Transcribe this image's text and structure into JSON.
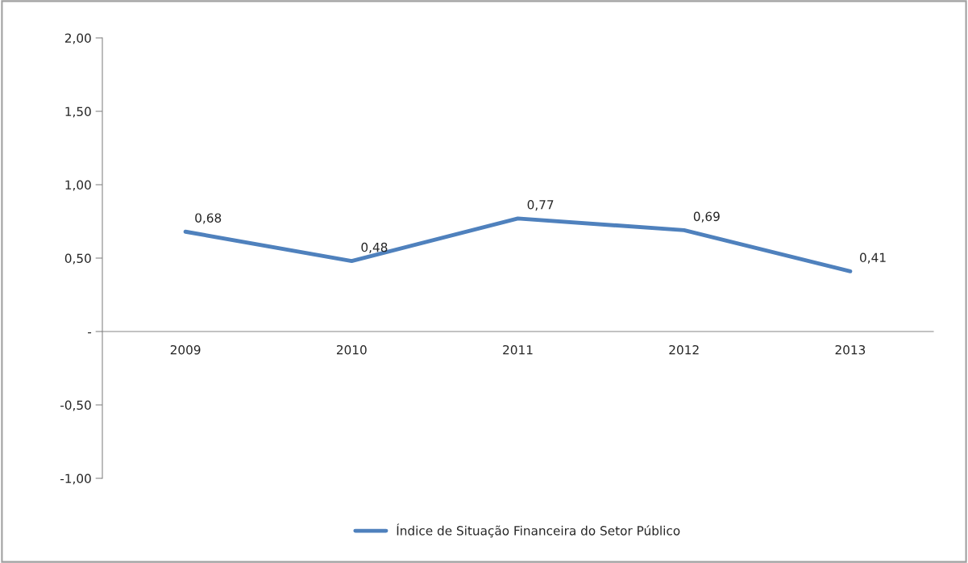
{
  "chart_data": {
    "type": "line",
    "categories": [
      "2009",
      "2010",
      "2011",
      "2012",
      "2013"
    ],
    "series": [
      {
        "name": "Índice de Situação Financeira do Setor Público",
        "color": "#4f81bd",
        "values": [
          0.68,
          0.48,
          0.77,
          0.69,
          0.41
        ]
      }
    ],
    "ylim": [
      -1,
      2
    ],
    "yticks": [
      {
        "value": -1,
        "label": "-1,00"
      },
      {
        "value": -0.5,
        "label": "-0,50"
      },
      {
        "value": 0,
        "label": "-"
      },
      {
        "value": 0.5,
        "label": "0,50"
      },
      {
        "value": 1,
        "label": "1,00"
      },
      {
        "value": 1.5,
        "label": "1,50"
      },
      {
        "value": 2,
        "label": "2,00"
      }
    ],
    "value_labels": [
      "0,68",
      "0,48",
      "0,77",
      "0,69",
      "0,41"
    ],
    "legend": "bottom",
    "grid": false,
    "marker": "none",
    "line_style": "solid"
  }
}
